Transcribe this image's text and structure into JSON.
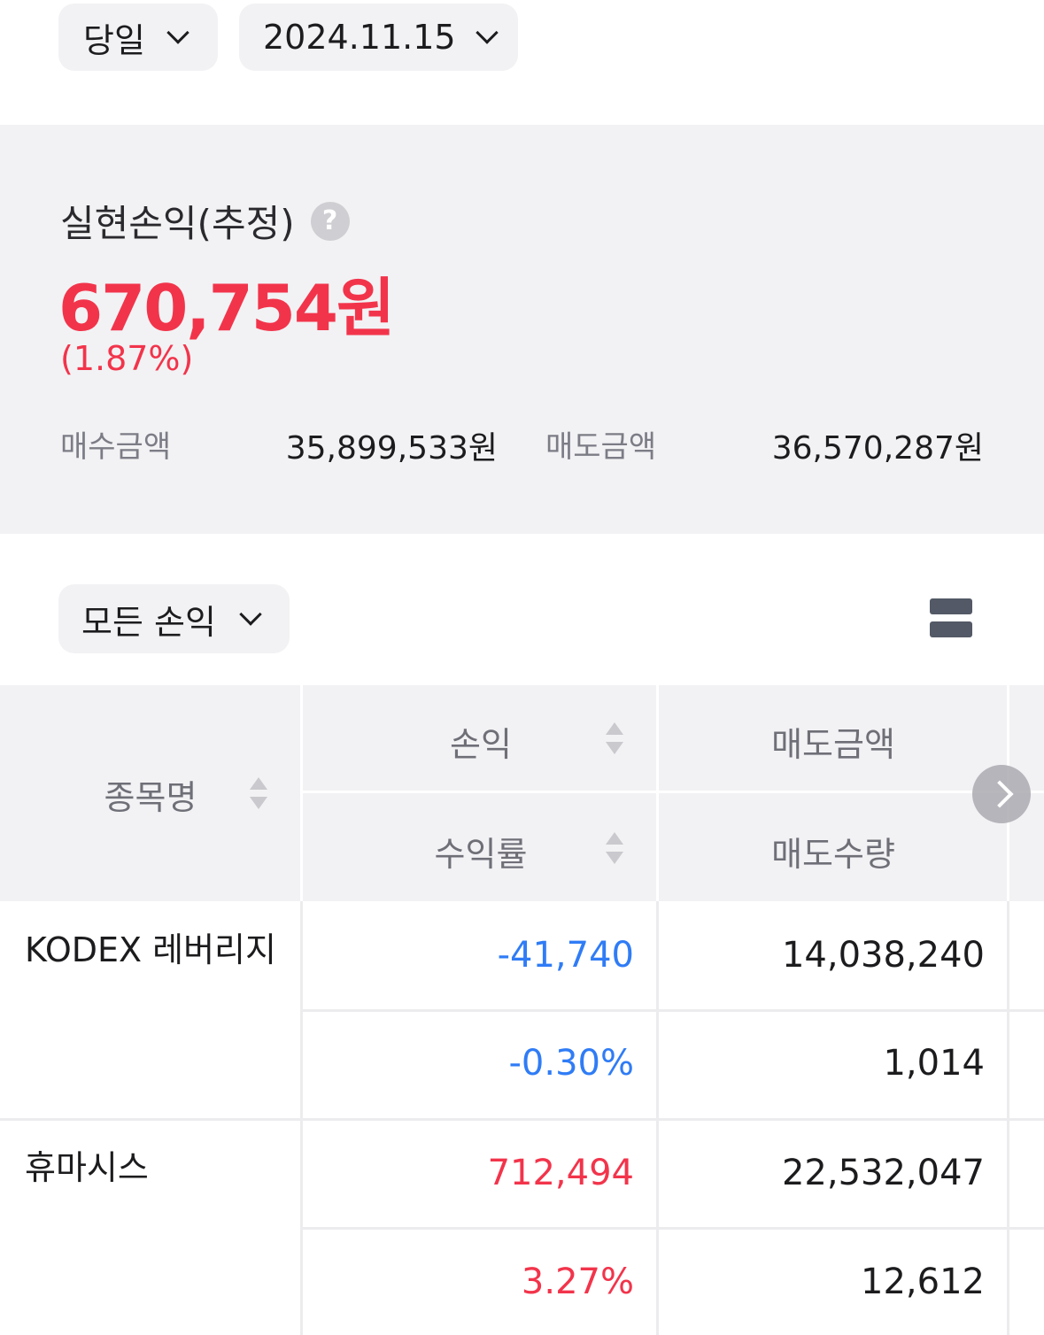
{
  "filters": {
    "period": "당일",
    "date": "2024.11.15",
    "profit_filter": "모든 손익"
  },
  "summary": {
    "title": "실현손익(추정)",
    "help_icon": "?",
    "amount": "670,754원",
    "rate": "(1.87%)",
    "buy_label": "매수금액",
    "buy_value": "35,899,533원",
    "sell_label": "매도금액",
    "sell_value": "36,570,287원"
  },
  "table": {
    "headers": {
      "name": "종목명",
      "profit": "손익",
      "return_rate": "수익률",
      "sell_amount": "매도금액",
      "sell_qty": "매도수량"
    },
    "rows": [
      {
        "name": "KODEX 레버리지",
        "profit": "-41,740",
        "rate": "-0.30%",
        "sell_amount": "14,038,240",
        "sell_qty": "1,014"
      },
      {
        "name": "휴마시스",
        "profit": "712,494",
        "rate": "3.27%",
        "sell_amount": "22,532,047",
        "sell_qty": "12,612"
      }
    ]
  },
  "colors": {
    "loss": "#2f7cf6",
    "gain": "#f2344b"
  },
  "icons": [
    "chevron-down-icon",
    "help-icon",
    "list-view-icon",
    "sort-icon",
    "chevron-right-icon"
  ]
}
